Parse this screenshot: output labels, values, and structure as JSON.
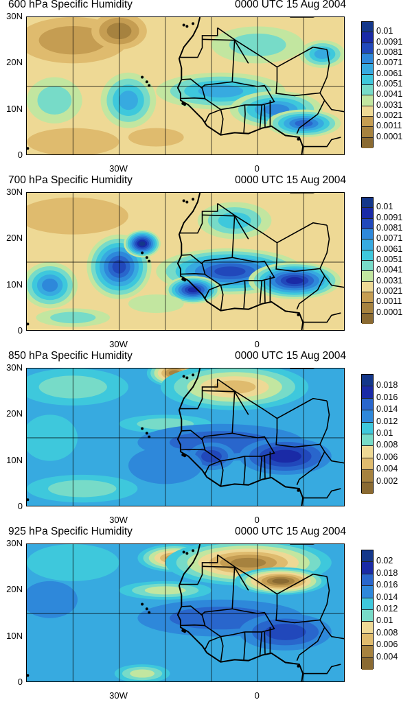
{
  "colors": [
    "#8a6a32",
    "#a6823f",
    "#c59d52",
    "#dfbb6e",
    "#eed995",
    "#c2e6a0",
    "#77dbc8",
    "#3ec8dc",
    "#37aae0",
    "#2e88da",
    "#2966cc",
    "#2148bb",
    "#1a2aa6",
    "#14378a"
  ],
  "panels": [
    {
      "title": "600 hPa Specific Humidity",
      "date": "0000 UTC 15 Aug 2004",
      "y_ticks": [
        "30N",
        "20N",
        "10N",
        "0"
      ],
      "x_ticks": [
        "30W",
        "0"
      ],
      "colorbar_labels": [
        "0.01",
        "0.0091",
        "0.0081",
        "0.0071",
        "0.0061",
        "0.0051",
        "0.0041",
        "0.0031",
        "0.0021",
        "0.0011",
        "0.0001"
      ]
    },
    {
      "title": "700 hPa Specific Humidity",
      "date": "0000 UTC 15 Aug 2004",
      "y_ticks": [
        "30N",
        "20N",
        "10N",
        "0"
      ],
      "x_ticks": [
        "30W",
        "0"
      ],
      "colorbar_labels": [
        "0.01",
        "0.0091",
        "0.0081",
        "0.0071",
        "0.0061",
        "0.0051",
        "0.0041",
        "0.0031",
        "0.0021",
        "0.0011",
        "0.0001"
      ]
    },
    {
      "title": "850 hPa Specific Humidity",
      "date": "0000 UTC 15 Aug 2004",
      "y_ticks": [
        "30N",
        "20N",
        "10N",
        "0"
      ],
      "x_ticks": [
        "30W",
        "0"
      ],
      "colorbar_labels": [
        "0.018",
        "0.016",
        "0.014",
        "0.012",
        "0.01",
        "0.008",
        "0.006",
        "0.004",
        "0.002"
      ]
    },
    {
      "title": "925 hPa Specific Humidity",
      "date": "0000 UTC 15 Aug 2004",
      "y_ticks": [
        "30N",
        "20N",
        "10N",
        "0"
      ],
      "x_ticks": [
        "30W",
        "0"
      ],
      "colorbar_labels": [
        "0.02",
        "0.018",
        "0.016",
        "0.014",
        "0.012",
        "0.01",
        "0.008",
        "0.006",
        "0.004"
      ]
    }
  ]
}
